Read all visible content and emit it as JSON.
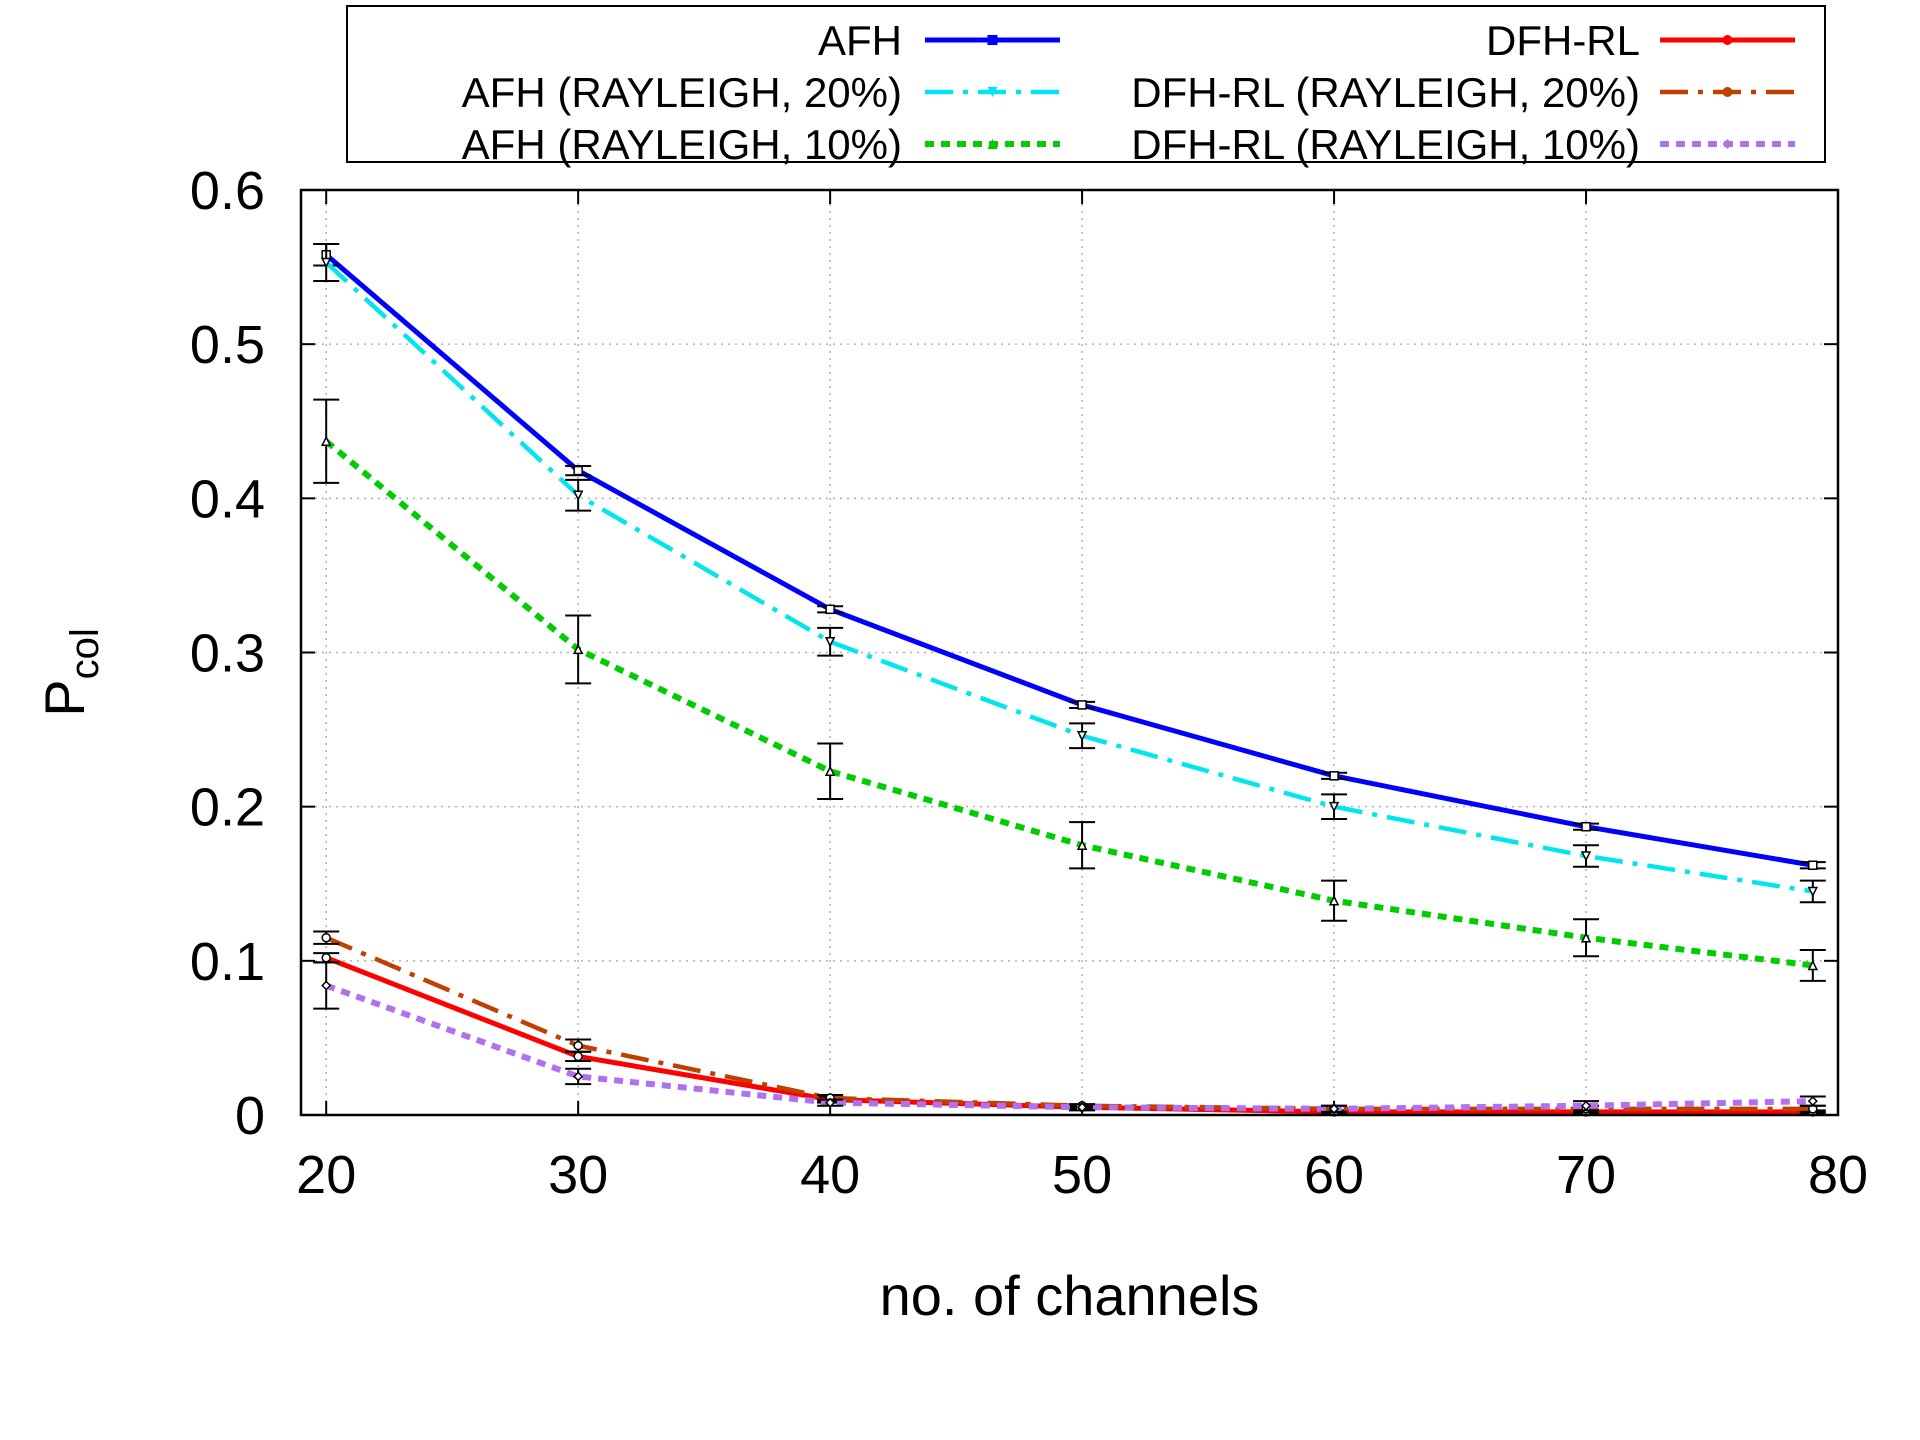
{
  "chart_data": {
    "type": "line",
    "xlabel": "no. of channels",
    "ylabel": "P",
    "ylabel_sub": "col",
    "xlim": [
      19,
      80
    ],
    "ylim": [
      0,
      0.6
    ],
    "x_ticks": [
      20,
      30,
      40,
      50,
      60,
      70,
      80
    ],
    "y_ticks": [
      0,
      0.1,
      0.2,
      0.3,
      0.4,
      0.5,
      0.6
    ],
    "x_tick_labels": [
      "20",
      "30",
      "40",
      "50",
      "60",
      "70",
      "80"
    ],
    "y_tick_labels": [
      "0",
      "0.1",
      "0.2",
      "0.3",
      "0.4",
      "0.5",
      "0.6"
    ],
    "grid": true,
    "legend_position": "top",
    "x": [
      20,
      30,
      40,
      50,
      60,
      70,
      79
    ],
    "series": [
      {
        "name": "AFH",
        "color": "#0000ff",
        "dash": "solid",
        "marker": "square",
        "values": [
          0.558,
          0.418,
          0.328,
          0.266,
          0.22,
          0.187,
          0.162
        ],
        "err": [
          0.007,
          0.003,
          0.002,
          0.002,
          0.002,
          0.002,
          0.002
        ]
      },
      {
        "name": "DFH-RL",
        "color": "#ff0000",
        "dash": "solid",
        "marker": "circle",
        "values": [
          0.102,
          0.038,
          0.01,
          0.005,
          0.002,
          0.002,
          0.002
        ],
        "err": [
          0.003,
          0.003,
          0.002,
          0.001,
          0.001,
          0.001,
          0.001
        ]
      },
      {
        "name": "AFH (RAYLEIGH, 20%)",
        "color": "#00e5ee",
        "dash": "dashdot",
        "marker": "triangle-down",
        "values": [
          0.553,
          0.402,
          0.307,
          0.246,
          0.2,
          0.168,
          0.145
        ],
        "err": [
          0.012,
          0.01,
          0.009,
          0.008,
          0.008,
          0.007,
          0.007
        ]
      },
      {
        "name": "DFH-RL (RAYLEIGH, 20%)",
        "color": "#c04000",
        "dash": "dashdot",
        "marker": "circle",
        "values": [
          0.115,
          0.045,
          0.011,
          0.006,
          0.004,
          0.004,
          0.004
        ],
        "err": [
          0.004,
          0.004,
          0.002,
          0.001,
          0.002,
          0.002,
          0.002
        ]
      },
      {
        "name": "AFH (RAYLEIGH, 10%)",
        "color": "#00cc00",
        "dash": "dotted",
        "marker": "triangle-up",
        "values": [
          0.437,
          0.302,
          0.223,
          0.175,
          0.139,
          0.115,
          0.097
        ],
        "err": [
          0.027,
          0.022,
          0.018,
          0.015,
          0.013,
          0.012,
          0.01
        ]
      },
      {
        "name": "DFH-RL (RAYLEIGH, 10%)",
        "color": "#b070f0",
        "dash": "dotted",
        "marker": "diamond",
        "values": [
          0.084,
          0.025,
          0.008,
          0.005,
          0.004,
          0.006,
          0.009
        ],
        "err": [
          0.015,
          0.005,
          0.002,
          0.002,
          0.002,
          0.003,
          0.003
        ]
      }
    ]
  }
}
